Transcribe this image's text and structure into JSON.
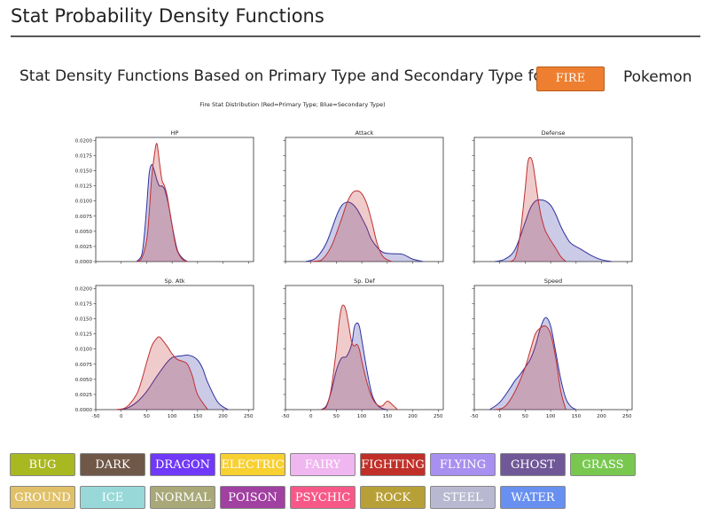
{
  "page": {
    "title": "Stat Probability Density Functions",
    "subtitle": "Stat Density Functions Based on Primary Type and Secondary Type for",
    "selected_type": "FIRE",
    "suffix": "Pokemon",
    "selected_color": "#ee7f30"
  },
  "type_buttons": [
    {
      "label": "BUG",
      "color": "#a8b820"
    },
    {
      "label": "DARK",
      "color": "#705848"
    },
    {
      "label": "DRAGON",
      "color": "#7038f8"
    },
    {
      "label": "ELECTRIC",
      "color": "#f8d030"
    },
    {
      "label": "FAIRY",
      "color": "#f0b6f0"
    },
    {
      "label": "FIGHTING",
      "color": "#c03028"
    },
    {
      "label": "FLYING",
      "color": "#a890f0"
    },
    {
      "label": "GHOST",
      "color": "#705898"
    },
    {
      "label": "GRASS",
      "color": "#78c850"
    },
    {
      "label": "GROUND",
      "color": "#e0c068"
    },
    {
      "label": "ICE",
      "color": "#98d8d8"
    },
    {
      "label": "NORMAL",
      "color": "#a8a878"
    },
    {
      "label": "POISON",
      "color": "#a040a0"
    },
    {
      "label": "PSYCHIC",
      "color": "#f85888"
    },
    {
      "label": "ROCK",
      "color": "#b8a038"
    },
    {
      "label": "STEEL",
      "color": "#b8b8d0"
    },
    {
      "label": "WATER",
      "color": "#6890f0"
    }
  ],
  "chart_data": {
    "type": "area",
    "title": "Fire Stat Distribution (Red=Primary Type;   Blue=Secondary Type)",
    "xlim": [
      -50,
      260
    ],
    "ylim": [
      0,
      0.0205
    ],
    "xticks": [
      -50,
      0,
      50,
      100,
      150,
      200,
      250
    ],
    "yticks": [
      0,
      0.0025,
      0.005,
      0.0075,
      0.01,
      0.0125,
      0.015,
      0.0175,
      0.02
    ],
    "ytick_labels": [
      "0.0000",
      "0.0025",
      "0.0050",
      "0.0075",
      "0.0100",
      "0.0125",
      "0.0150",
      "0.0175",
      "0.0200"
    ],
    "series_colors": {
      "primary": "#c03030",
      "secondary": "#3030a0"
    },
    "panels": [
      {
        "title": "HP",
        "primary": {
          "x": [
            30,
            40,
            50,
            55,
            60,
            65,
            70,
            75,
            80,
            85,
            90,
            95,
            100,
            105,
            110,
            120,
            130
          ],
          "y": [
            0,
            0.0005,
            0.0035,
            0.008,
            0.014,
            0.0175,
            0.0195,
            0.0165,
            0.0135,
            0.0125,
            0.011,
            0.0085,
            0.006,
            0.0035,
            0.0018,
            0.0004,
            0
          ]
        },
        "secondary": {
          "x": [
            30,
            40,
            45,
            50,
            55,
            60,
            65,
            70,
            75,
            80,
            85,
            90,
            95,
            100,
            110,
            120,
            130
          ],
          "y": [
            0,
            0.001,
            0.004,
            0.009,
            0.0145,
            0.016,
            0.015,
            0.0135,
            0.0125,
            0.0125,
            0.012,
            0.0105,
            0.0085,
            0.006,
            0.002,
            0.0006,
            0
          ]
        }
      },
      {
        "title": "Attack",
        "primary": {
          "x": [
            0,
            20,
            40,
            60,
            70,
            80,
            90,
            100,
            110,
            120,
            130,
            140,
            150,
            160
          ],
          "y": [
            0,
            0.0002,
            0.0025,
            0.007,
            0.0095,
            0.0112,
            0.0117,
            0.0112,
            0.0095,
            0.0065,
            0.003,
            0.001,
            0.0003,
            0
          ]
        },
        "secondary": {
          "x": [
            -10,
            10,
            30,
            50,
            60,
            70,
            80,
            90,
            100,
            110,
            120,
            140,
            160,
            180,
            200,
            220
          ],
          "y": [
            0,
            0.0006,
            0.003,
            0.0075,
            0.0092,
            0.0098,
            0.0096,
            0.0087,
            0.0072,
            0.0055,
            0.0035,
            0.0016,
            0.0013,
            0.0012,
            0.0004,
            0
          ]
        }
      },
      {
        "title": "Defense",
        "primary": {
          "x": [
            20,
            30,
            40,
            50,
            55,
            60,
            65,
            70,
            75,
            80,
            85,
            90,
            100,
            110,
            120,
            130
          ],
          "y": [
            0,
            0.0006,
            0.0045,
            0.012,
            0.0163,
            0.0172,
            0.0162,
            0.0135,
            0.0105,
            0.008,
            0.0063,
            0.005,
            0.0035,
            0.0022,
            0.0008,
            0
          ]
        },
        "secondary": {
          "x": [
            -10,
            10,
            30,
            50,
            60,
            70,
            80,
            90,
            100,
            110,
            120,
            130,
            140,
            160,
            180,
            200,
            220
          ],
          "y": [
            0,
            0.0004,
            0.002,
            0.0065,
            0.0088,
            0.01,
            0.0102,
            0.01,
            0.0093,
            0.0078,
            0.0058,
            0.0042,
            0.003,
            0.002,
            0.001,
            0.0003,
            0
          ]
        }
      },
      {
        "title": "Sp. Atk",
        "primary": {
          "x": [
            -10,
            10,
            30,
            40,
            50,
            60,
            70,
            75,
            80,
            90,
            100,
            110,
            120,
            130,
            140,
            150,
            170
          ],
          "y": [
            0,
            0.0004,
            0.0025,
            0.0048,
            0.0078,
            0.0105,
            0.0118,
            0.012,
            0.0116,
            0.0105,
            0.0092,
            0.0083,
            0.008,
            0.0075,
            0.0055,
            0.0025,
            0
          ]
        },
        "secondary": {
          "x": [
            -10,
            10,
            30,
            50,
            70,
            90,
            100,
            110,
            120,
            130,
            140,
            150,
            160,
            170,
            190,
            210
          ],
          "y": [
            0,
            0.0002,
            0.0012,
            0.003,
            0.0055,
            0.0078,
            0.0086,
            0.0088,
            0.0089,
            0.009,
            0.0088,
            0.0082,
            0.0068,
            0.0045,
            0.0012,
            0
          ]
        }
      },
      {
        "title": "Sp. Def",
        "primary": {
          "x": [
            20,
            30,
            40,
            50,
            55,
            60,
            65,
            70,
            75,
            80,
            85,
            90,
            95,
            100,
            110,
            120,
            130,
            140,
            150,
            160,
            170
          ],
          "y": [
            0,
            0.0004,
            0.0035,
            0.01,
            0.0142,
            0.0168,
            0.0172,
            0.016,
            0.0136,
            0.0112,
            0.0105,
            0.0108,
            0.01,
            0.008,
            0.0045,
            0.002,
            0.0008,
            0.0006,
            0.0014,
            0.0008,
            0
          ]
        },
        "secondary": {
          "x": [
            20,
            30,
            40,
            50,
            60,
            70,
            80,
            85,
            90,
            95,
            100,
            110,
            120,
            130,
            140,
            150
          ],
          "y": [
            0,
            0.0006,
            0.003,
            0.0065,
            0.0085,
            0.0088,
            0.0108,
            0.0135,
            0.0143,
            0.0138,
            0.0115,
            0.0065,
            0.0025,
            0.0008,
            0.0002,
            0
          ]
        }
      },
      {
        "title": "Speed",
        "primary": {
          "x": [
            -10,
            10,
            30,
            50,
            60,
            70,
            80,
            90,
            100,
            110,
            120,
            130
          ],
          "y": [
            0,
            0.0005,
            0.003,
            0.007,
            0.0098,
            0.0125,
            0.0135,
            0.0138,
            0.0125,
            0.0085,
            0.003,
            0
          ]
        },
        "secondary": {
          "x": [
            -20,
            0,
            20,
            30,
            40,
            50,
            60,
            70,
            80,
            90,
            100,
            110,
            120,
            130,
            140,
            150
          ],
          "y": [
            0,
            0.0012,
            0.0035,
            0.0048,
            0.0058,
            0.007,
            0.0083,
            0.0105,
            0.0135,
            0.0152,
            0.0138,
            0.0095,
            0.005,
            0.0018,
            0.0005,
            0
          ]
        }
      }
    ]
  }
}
